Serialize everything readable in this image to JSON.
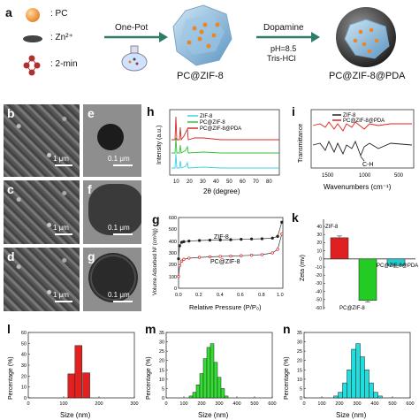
{
  "panels": {
    "a": "a",
    "b": "b",
    "c": "c",
    "d": "d",
    "e": "e",
    "f": "f",
    "g": "g",
    "h": "h",
    "i": "i",
    "k": "k",
    "l": "l",
    "m": "m",
    "n": "n"
  },
  "scheme": {
    "legend": [
      {
        "symbol": "orange-sphere",
        "label": ": PC"
      },
      {
        "symbol": "dark-disc",
        "label": ": Zn²⁺"
      },
      {
        "symbol": "red-molecule",
        "label": ": 2-min"
      }
    ],
    "step1": "One-Pot",
    "product1": "PC@ZIF-8",
    "step2": "Dopamine",
    "cond1": "pH=8.5",
    "cond2": "Tris-HCl",
    "product2": "PC@ZIF-8@PDA"
  },
  "micrographs": {
    "scale_sem": "1 μm",
    "scale_tem": "0.1 μm"
  },
  "colors": {
    "zif8": "#3fd0e0",
    "pczif8": "#35c235",
    "pczif8pda": "#d42a2a",
    "black": "#222222",
    "red": "#e02020",
    "green": "#22cc22",
    "cyan": "#22cccc"
  },
  "charts": {
    "xrd": {
      "legend": [
        "ZIF-8",
        "PC@ZIF-8",
        "PC@ZIF-8@PDA"
      ],
      "xlabel": "2θ (degree)",
      "ylabel": "Intensity (a.u.)",
      "xticks": [
        "10",
        "20",
        "30",
        "40",
        "50",
        "60",
        "70",
        "80"
      ]
    },
    "ftir": {
      "legend": [
        "ZIF-8",
        "PC@ZIF-8@PDA"
      ],
      "xlabel": "Wavenumbers (cm⁻¹)",
      "ylabel": "Transmittance",
      "xticks": [
        "1500",
        "1000",
        "500"
      ],
      "annotation": "C-H"
    },
    "bet": {
      "xlabel": "Relative Pressure (P/P₀)",
      "ylabel": "Volume Adsorbed N² (cm³/g)",
      "xticks": [
        "0.0",
        "0.2",
        "0.4",
        "0.6",
        "0.8",
        "1.0"
      ],
      "yticks": [
        "0",
        "100",
        "200",
        "300",
        "400",
        "500",
        "600"
      ],
      "label_a": "ZIF-8",
      "label_b": "PC@ZIF-8"
    },
    "zeta": {
      "ylabel": "Zeta (mv)",
      "yticks": [
        "40",
        "30",
        "20",
        "10",
        "0",
        "-10",
        "-20",
        "-30",
        "-40",
        "-50",
        "-60"
      ],
      "labels": [
        "ZIF-8",
        "PC@ZIF-8",
        "PC@ZIF-8@PDA"
      ]
    },
    "dls_l": {
      "xlabel": "Size (nm)",
      "ylabel": "Percentage (%)",
      "xticks": [
        "0",
        "100",
        "200",
        "300"
      ],
      "yticks": [
        "0",
        "10",
        "20",
        "30",
        "40",
        "50",
        "60"
      ]
    },
    "dls_m": {
      "xlabel": "Size (nm)",
      "ylabel": "Percentage (%)",
      "xticks": [
        "0",
        "100",
        "200",
        "300",
        "400",
        "500",
        "600"
      ],
      "yticks": [
        "0",
        "5",
        "10",
        "15",
        "20",
        "25",
        "30",
        "35"
      ]
    },
    "dls_n": {
      "xlabel": "Size (nm)",
      "ylabel": "Percentage (%)",
      "xticks": [
        "0",
        "100",
        "200",
        "300",
        "400",
        "500",
        "600"
      ],
      "yticks": [
        "0",
        "5",
        "10",
        "15",
        "20",
        "25",
        "30",
        "35"
      ]
    }
  },
  "chart_data": [
    {
      "type": "bar",
      "categories": [
        "ZIF-8",
        "PC@ZIF-8",
        "PC@ZIF-8@PDA"
      ],
      "values": [
        26,
        -51,
        -8
      ],
      "ylabel": "Zeta (mv)",
      "ylim": [
        -60,
        40
      ]
    },
    {
      "type": "bar",
      "x": [
        122,
        142,
        164
      ],
      "values": [
        22,
        48,
        23
      ],
      "xlabel": "Size (nm)",
      "ylabel": "Percentage (%)",
      "xlim": [
        0,
        300
      ],
      "ylim": [
        0,
        60
      ]
    },
    {
      "type": "bar",
      "x": [
        140,
        160,
        180,
        200,
        220,
        240,
        260,
        280,
        300,
        320,
        340
      ],
      "values": [
        1,
        3,
        7,
        13,
        21,
        27,
        29,
        19,
        11,
        5,
        1
      ],
      "xlabel": "Size (nm)",
      "ylabel": "Percentage (%)",
      "xlim": [
        0,
        600
      ],
      "ylim": [
        0,
        35
      ]
    },
    {
      "type": "bar",
      "x": [
        180,
        205,
        230,
        255,
        280,
        305,
        330,
        355,
        380,
        405,
        430
      ],
      "values": [
        1,
        3,
        8,
        15,
        26,
        29,
        22,
        15,
        8,
        3,
        1
      ],
      "xlabel": "Size (nm)",
      "ylabel": "Percentage (%)",
      "xlim": [
        0,
        600
      ],
      "ylim": [
        0,
        35
      ]
    },
    {
      "type": "scatter",
      "title": "",
      "series": [
        {
          "name": "ZIF-8",
          "x": [
            0.0,
            0.01,
            0.03,
            0.05,
            0.1,
            0.2,
            0.3,
            0.4,
            0.5,
            0.6,
            0.7,
            0.8,
            0.9,
            0.95,
            0.99
          ],
          "y": [
            250,
            360,
            390,
            395,
            400,
            405,
            408,
            410,
            412,
            415,
            418,
            420,
            425,
            440,
            560
          ]
        },
        {
          "name": "PC@ZIF-8",
          "x": [
            0.0,
            0.01,
            0.03,
            0.05,
            0.1,
            0.2,
            0.3,
            0.4,
            0.5,
            0.6,
            0.7,
            0.8,
            0.9,
            0.95,
            0.99
          ],
          "y": [
            100,
            190,
            230,
            245,
            255,
            262,
            266,
            270,
            273,
            276,
            280,
            285,
            300,
            330,
            460
          ]
        }
      ],
      "xlabel": "Relative Pressure (P/P₀)",
      "ylabel": "Volume Adsorbed N² (cm³/g)",
      "xlim": [
        0,
        1
      ],
      "ylim": [
        0,
        600
      ]
    }
  ]
}
